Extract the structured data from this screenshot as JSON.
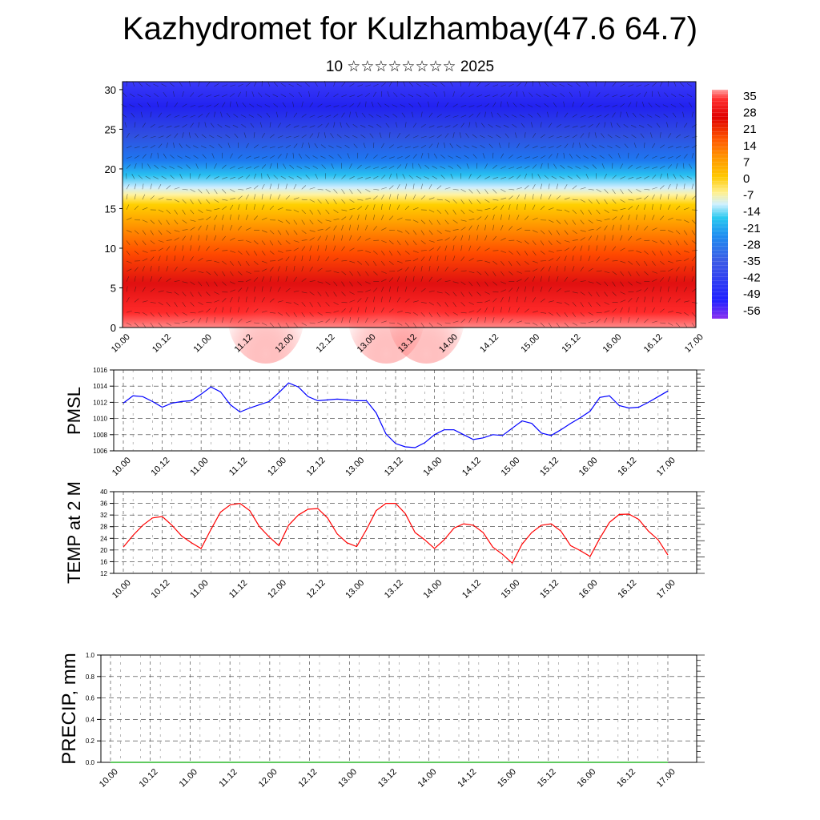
{
  "header": {
    "title": "Kazhydromet for Kulzhambay(47.6 64.7)",
    "subtitle": "10 ☆☆☆☆☆☆☆☆ 2025"
  },
  "colors": {
    "pmsl_line": "#0000ff",
    "temp_line": "#ff0000",
    "precip_line": "#00aa00",
    "colorbar": [
      "#ff9c9c",
      "#ff3030",
      "#e00000",
      "#ff5a00",
      "#ff9800",
      "#ffc800",
      "#fff090",
      "#d0f0ff",
      "#28c8f0",
      "#1e8cf0",
      "#3c5ae6",
      "#2020ff",
      "#7030f0"
    ]
  },
  "chart_data": [
    {
      "type": "heatmap",
      "description_type": "height-time cross-section with wind barbs",
      "x_ticks": [
        "10.00",
        "10.12",
        "11.00",
        "11.12",
        "12.00",
        "12.12",
        "13.00",
        "13.12",
        "14.00",
        "14.12",
        "15.00",
        "15.12",
        "16.00",
        "16.12",
        "17.00"
      ],
      "y_ticks": [
        "0",
        "5",
        "10",
        "15",
        "20",
        "25",
        "30"
      ],
      "ylim": [
        0,
        31
      ],
      "colorbar_labels": [
        "35",
        "28",
        "21",
        "14",
        "7",
        "0",
        "-7",
        "-14",
        "-21",
        "-28",
        "-35",
        "-42",
        "-49",
        "-56"
      ]
    },
    {
      "type": "line",
      "ylabel": "PMSL",
      "ylim": [
        1006,
        1016
      ],
      "y_ticks": [
        "1016",
        "1014",
        "1012",
        "1010",
        "1008",
        "1006"
      ],
      "x_ticks": [
        "10.00",
        "10.12",
        "11.00",
        "11.12",
        "12.00",
        "12.12",
        "13.00",
        "13.12",
        "14.00",
        "14.12",
        "15.00",
        "15.12",
        "16.00",
        "16.12",
        "17.00"
      ],
      "values": [
        1011.9,
        1012.8,
        1012.7,
        1012.1,
        1011.4,
        1011.9,
        1012.1,
        1012.2,
        1013.0,
        1013.9,
        1013.3,
        1011.7,
        1010.8,
        1011.3,
        1011.7,
        1012.1,
        1013.2,
        1014.4,
        1013.9,
        1012.7,
        1012.2,
        1012.3,
        1012.4,
        1012.3,
        1012.2,
        1012.2,
        1010.7,
        1008.1,
        1006.9,
        1006.5,
        1006.4,
        1007.0,
        1008.0,
        1008.6,
        1008.6,
        1008.0,
        1007.4,
        1007.6,
        1008.0,
        1007.9,
        1008.8,
        1009.7,
        1009.4,
        1008.2,
        1007.9,
        1008.6,
        1009.4,
        1010.1,
        1010.9,
        1012.6,
        1012.8,
        1011.6,
        1011.3,
        1011.4,
        1012.0,
        1012.7,
        1013.4
      ]
    },
    {
      "type": "line",
      "ylabel": "TEMP at 2 M",
      "ylim": [
        12,
        40
      ],
      "y_ticks": [
        "40",
        "36",
        "32",
        "28",
        "24",
        "20",
        "16",
        "12"
      ],
      "x_ticks": [
        "10.00",
        "10.12",
        "11.00",
        "11.12",
        "12.00",
        "12.12",
        "13.00",
        "13.12",
        "14.00",
        "14.12",
        "15.00",
        "15.12",
        "16.00",
        "16.12",
        "17.00"
      ],
      "values": [
        21.0,
        25.0,
        28.5,
        31.0,
        31.5,
        28.5,
        24.8,
        22.5,
        20.5,
        27.0,
        33.0,
        35.5,
        36.0,
        33.5,
        28.0,
        24.5,
        21.5,
        28.5,
        32.0,
        34.0,
        34.2,
        31.0,
        25.5,
        22.5,
        21.2,
        27.0,
        33.5,
        36.0,
        36.0,
        32.5,
        26.0,
        23.5,
        20.5,
        23.5,
        27.5,
        29.0,
        28.5,
        26.0,
        21.0,
        18.5,
        15.5,
        22.0,
        26.0,
        28.5,
        29.0,
        26.5,
        21.5,
        19.8,
        17.8,
        24.0,
        29.5,
        32.2,
        32.3,
        30.5,
        26.5,
        23.5,
        18.3
      ]
    },
    {
      "type": "line",
      "ylabel": "PRECIP, mm",
      "ylim": [
        0.0,
        1.0
      ],
      "y_ticks": [
        "1.0",
        "0.8",
        "0.6",
        "0.4",
        "0.2",
        "0.0"
      ],
      "x_ticks": [
        "10.00",
        "10.12",
        "11.00",
        "11.12",
        "12.00",
        "12.12",
        "13.00",
        "13.12",
        "14.00",
        "14.12",
        "15.00",
        "15.12",
        "16.00",
        "16.12",
        "17.00"
      ],
      "values": [
        0,
        0,
        0,
        0,
        0,
        0,
        0,
        0,
        0,
        0,
        0,
        0,
        0,
        0,
        0,
        0,
        0,
        0,
        0,
        0,
        0,
        0,
        0,
        0,
        0,
        0,
        0,
        0,
        0,
        0,
        0,
        0,
        0,
        0,
        0,
        0,
        0,
        0,
        0,
        0,
        0,
        0,
        0,
        0,
        0,
        0,
        0,
        0,
        0,
        0,
        0,
        0,
        0,
        0,
        0,
        0,
        0
      ]
    }
  ]
}
